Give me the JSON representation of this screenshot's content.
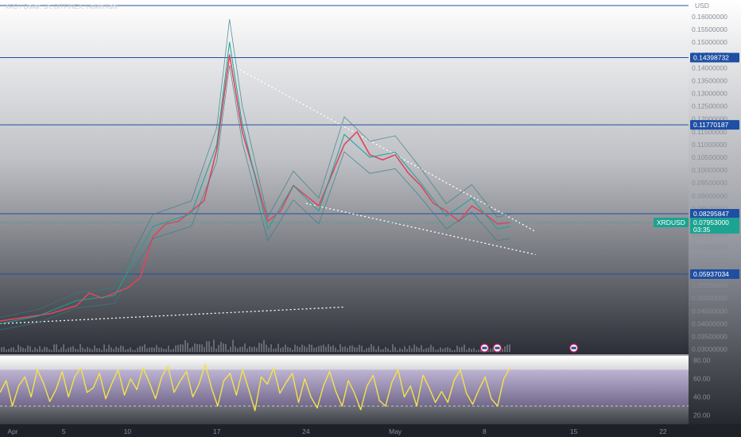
{
  "header": {
    "legend": "XRD / Dollar, 1h, BITFINEX, Heikin Ashi"
  },
  "price_axis": {
    "currency": "USD"
  },
  "chart_data": {
    "type": "line",
    "symbol": "XRDUSD",
    "timeframe": "1h",
    "price_scale": {
      "ylim": [
        0.028,
        0.1665
      ],
      "ticks": [
        "0.16000000",
        "0.15500000",
        "0.15000000",
        "0.14500000",
        "0.14000000",
        "0.13500000",
        "0.13000000",
        "0.12500000",
        "0.12000000",
        "0.11500000",
        "0.11000000",
        "0.10500000",
        "0.10000000",
        "0.09500000",
        "0.09000000",
        "0.08500000",
        "0.08000000",
        "0.07500000",
        "0.07000000",
        "0.06500000",
        "0.06000000",
        "0.05500000",
        "0.05000000",
        "0.04500000",
        "0.04000000",
        "0.03500000",
        "0.03000000"
      ]
    },
    "time_axis": {
      "range": [
        "Mar 31",
        "May 24"
      ],
      "ticks": [
        {
          "label": "Apr",
          "date": "2024-04-01"
        },
        {
          "label": "5",
          "date": "2024-04-05"
        },
        {
          "label": "10",
          "date": "2024-04-10"
        },
        {
          "label": "17",
          "date": "2024-04-17"
        },
        {
          "label": "24",
          "date": "2024-04-24"
        },
        {
          "label": "May",
          "date": "2024-05-01"
        },
        {
          "label": "8",
          "date": "2024-05-08"
        },
        {
          "label": "15",
          "date": "2024-05-15"
        },
        {
          "label": "22",
          "date": "2024-05-22"
        }
      ]
    },
    "horizontal_levels": [
      {
        "value": 0.14398732,
        "label": "0.14398732",
        "color": "#1e4fa3"
      },
      {
        "value": 0.11770187,
        "label": "0.11770187",
        "color": "#1e4fa3"
      },
      {
        "value": 0.08295847,
        "label": "0.08295847",
        "color": "#1e4fa3"
      },
      {
        "value": 0.05937034,
        "label": "0.05937034",
        "color": "#1e4fa3"
      }
    ],
    "current_price": {
      "symbol": "XRDUSD",
      "value": 0.07953,
      "label": "0.07953000",
      "countdown": "03:35",
      "color": "#1ca391"
    },
    "series": [
      {
        "color": "#e0455d",
        "x": [
          "2024-03-31",
          "2024-04-02",
          "2024-04-04",
          "2024-04-06",
          "2024-04-07",
          "2024-04-08",
          "2024-04-09",
          "2024-04-10",
          "2024-04-11",
          "2024-04-12",
          "2024-04-13",
          "2024-04-14",
          "2024-04-15",
          "2024-04-16",
          "2024-04-17",
          "2024-04-18",
          "2024-04-18T12:00",
          "2024-04-19",
          "2024-04-20",
          "2024-04-21",
          "2024-04-22",
          "2024-04-23",
          "2024-04-24",
          "2024-04-25",
          "2024-04-26",
          "2024-04-27",
          "2024-04-28",
          "2024-04-29",
          "2024-04-30",
          "2024-05-01",
          "2024-05-02",
          "2024-05-03",
          "2024-05-04",
          "2024-05-05",
          "2024-05-06",
          "2024-05-07",
          "2024-05-08",
          "2024-05-09",
          "2024-05-10"
        ],
        "y": [
          0.041,
          0.0425,
          0.044,
          0.047,
          0.052,
          0.05,
          0.052,
          0.054,
          0.058,
          0.074,
          0.079,
          0.08,
          0.084,
          0.088,
          0.108,
          0.145,
          0.13,
          0.115,
          0.098,
          0.08,
          0.084,
          0.094,
          0.09,
          0.086,
          0.098,
          0.11,
          0.115,
          0.106,
          0.104,
          0.106,
          0.099,
          0.094,
          0.087,
          0.084,
          0.08,
          0.086,
          0.083,
          0.079,
          0.0795
        ]
      },
      {
        "color": "#1aa39a",
        "x": [
          "2024-03-31",
          "2024-04-03",
          "2024-04-06",
          "2024-04-09",
          "2024-04-12",
          "2024-04-15",
          "2024-04-17",
          "2024-04-18",
          "2024-04-19",
          "2024-04-21",
          "2024-04-23",
          "2024-04-25",
          "2024-04-27",
          "2024-04-29",
          "2024-05-01",
          "2024-05-03",
          "2024-05-05",
          "2024-05-07",
          "2024-05-09",
          "2024-05-10"
        ],
        "y": [
          0.04,
          0.043,
          0.049,
          0.051,
          0.078,
          0.083,
          0.11,
          0.15,
          0.118,
          0.077,
          0.094,
          0.084,
          0.114,
          0.105,
          0.107,
          0.095,
          0.082,
          0.089,
          0.077,
          0.078
        ]
      }
    ],
    "trendlines": [
      {
        "from": {
          "x": "2024-04-18",
          "y": 0.1415
        },
        "to": {
          "x": "2024-05-12",
          "y": 0.076
        }
      },
      {
        "from": {
          "x": "2024-04-24",
          "y": 0.087
        },
        "to": {
          "x": "2024-05-12",
          "y": 0.067
        }
      },
      {
        "from": {
          "x": "2024-03-31",
          "y": 0.04
        },
        "to": {
          "x": "2024-04-27",
          "y": 0.0465
        }
      }
    ],
    "events": [
      "2024-05-08",
      "2024-05-09",
      "2024-05-15"
    ],
    "rsi": {
      "ticks": [
        "80.00",
        "60.00",
        "40.00",
        "20.00"
      ],
      "ylim": [
        10,
        85
      ],
      "upper": 70,
      "lower": 30,
      "mid": 50,
      "x_start": "2024-03-31",
      "x_end": "2024-05-10",
      "values": [
        45,
        58,
        30,
        52,
        62,
        40,
        70,
        55,
        35,
        48,
        68,
        40,
        62,
        72,
        45,
        50,
        66,
        38,
        55,
        70,
        42,
        60,
        48,
        72,
        56,
        38,
        62,
        74,
        45,
        58,
        68,
        40,
        54,
        76,
        50,
        30,
        58,
        66,
        42,
        70,
        48,
        25,
        62,
        54,
        72,
        44,
        56,
        66,
        34,
        60,
        40,
        28,
        52,
        68,
        46,
        30,
        58,
        44,
        26,
        52,
        64,
        36,
        30,
        56,
        70,
        40,
        52,
        30,
        64,
        50,
        34,
        46,
        34,
        58,
        70,
        44,
        32,
        48,
        62,
        38,
        30,
        60,
        72
      ]
    }
  }
}
